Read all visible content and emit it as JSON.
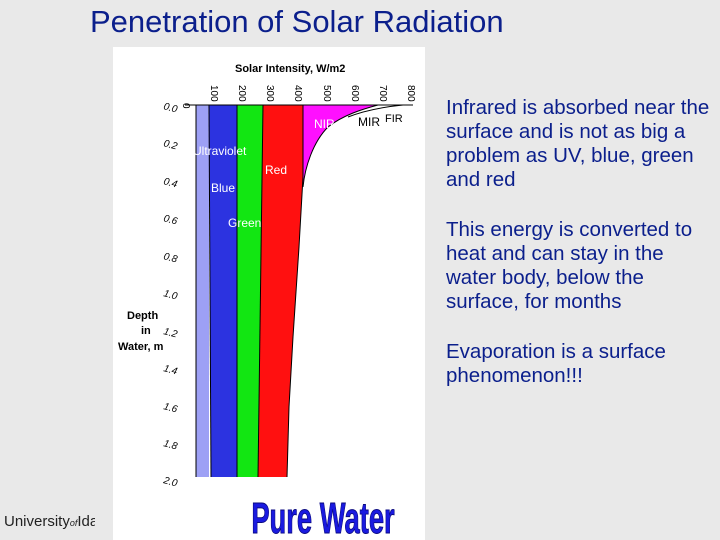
{
  "title": "Penetration of Solar Radiation",
  "bullets": [
    "Infrared is absorbed near the surface and is not as big a problem as UV, blue, green and red",
    "This energy is converted to heat and can stay in the water body, below the surface, for months",
    "Evaporation is a surface phenomenon!!!"
  ],
  "logo": {
    "part1": "University",
    "part2": "of",
    "part3": "Idaho"
  },
  "figure": {
    "x_axis_title": "Solar Intensity, W/m2",
    "x_ticks": [
      "0",
      "100",
      "200",
      "300",
      "400",
      "500",
      "600",
      "700",
      "800"
    ],
    "y_axis_title": [
      "Depth",
      "in",
      "Water, m"
    ],
    "y_ticks": [
      "0.0",
      "0.2",
      "0.4",
      "0.6",
      "0.8",
      "1.0",
      "1.2",
      "1.4",
      "1.6",
      "1.8",
      "2.0"
    ],
    "bands": [
      {
        "label": "Ultraviolet",
        "color": "#9da0f5"
      },
      {
        "label": "Blue",
        "color": "#2c33e0"
      },
      {
        "label": "Green",
        "color": "#12e612"
      },
      {
        "label": "Red",
        "color": "#ff1010"
      },
      {
        "label": "NIR",
        "color": "#ff10ff"
      },
      {
        "label": "MIR",
        "color": "#ffffff"
      },
      {
        "label": "FIR",
        "color": "#ffffff"
      }
    ],
    "caption": "Pure Water",
    "caption_color": "#1a1ae0"
  }
}
